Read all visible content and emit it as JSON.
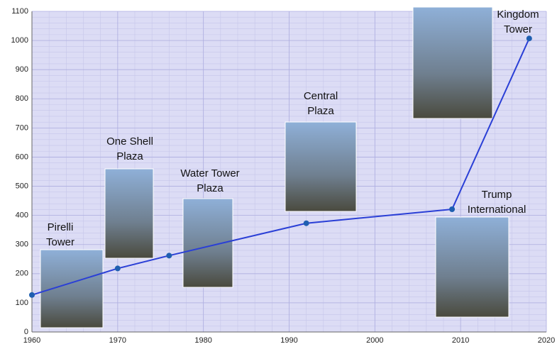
{
  "chart_data": {
    "type": "line",
    "x": [
      1960,
      1970,
      1976,
      1992,
      2009,
      2018
    ],
    "series": [
      {
        "color": "#2a3fd6",
        "values": [
          127,
          218,
          262,
          373,
          421,
          1007
        ]
      }
    ],
    "annotations": [
      {
        "lines": [
          "Pirelli",
          "Tower"
        ]
      },
      {
        "lines": [
          "One Shell",
          "Plaza"
        ]
      },
      {
        "lines": [
          "Water Tower",
          "Plaza"
        ]
      },
      {
        "lines": [
          "Central",
          "Plaza"
        ]
      },
      {
        "lines": [
          "Trump",
          "International"
        ]
      },
      {
        "lines": [
          "Kingdom",
          "Tower"
        ]
      }
    ],
    "xlim": [
      1960,
      2020
    ],
    "xticks": [
      1960,
      1970,
      1980,
      1990,
      2000,
      2010,
      2020
    ],
    "ylim": [
      0,
      1100
    ],
    "yticks": [
      0,
      100,
      200,
      300,
      400,
      500,
      600,
      700,
      800,
      900,
      1000,
      1100
    ],
    "grid": true
  }
}
